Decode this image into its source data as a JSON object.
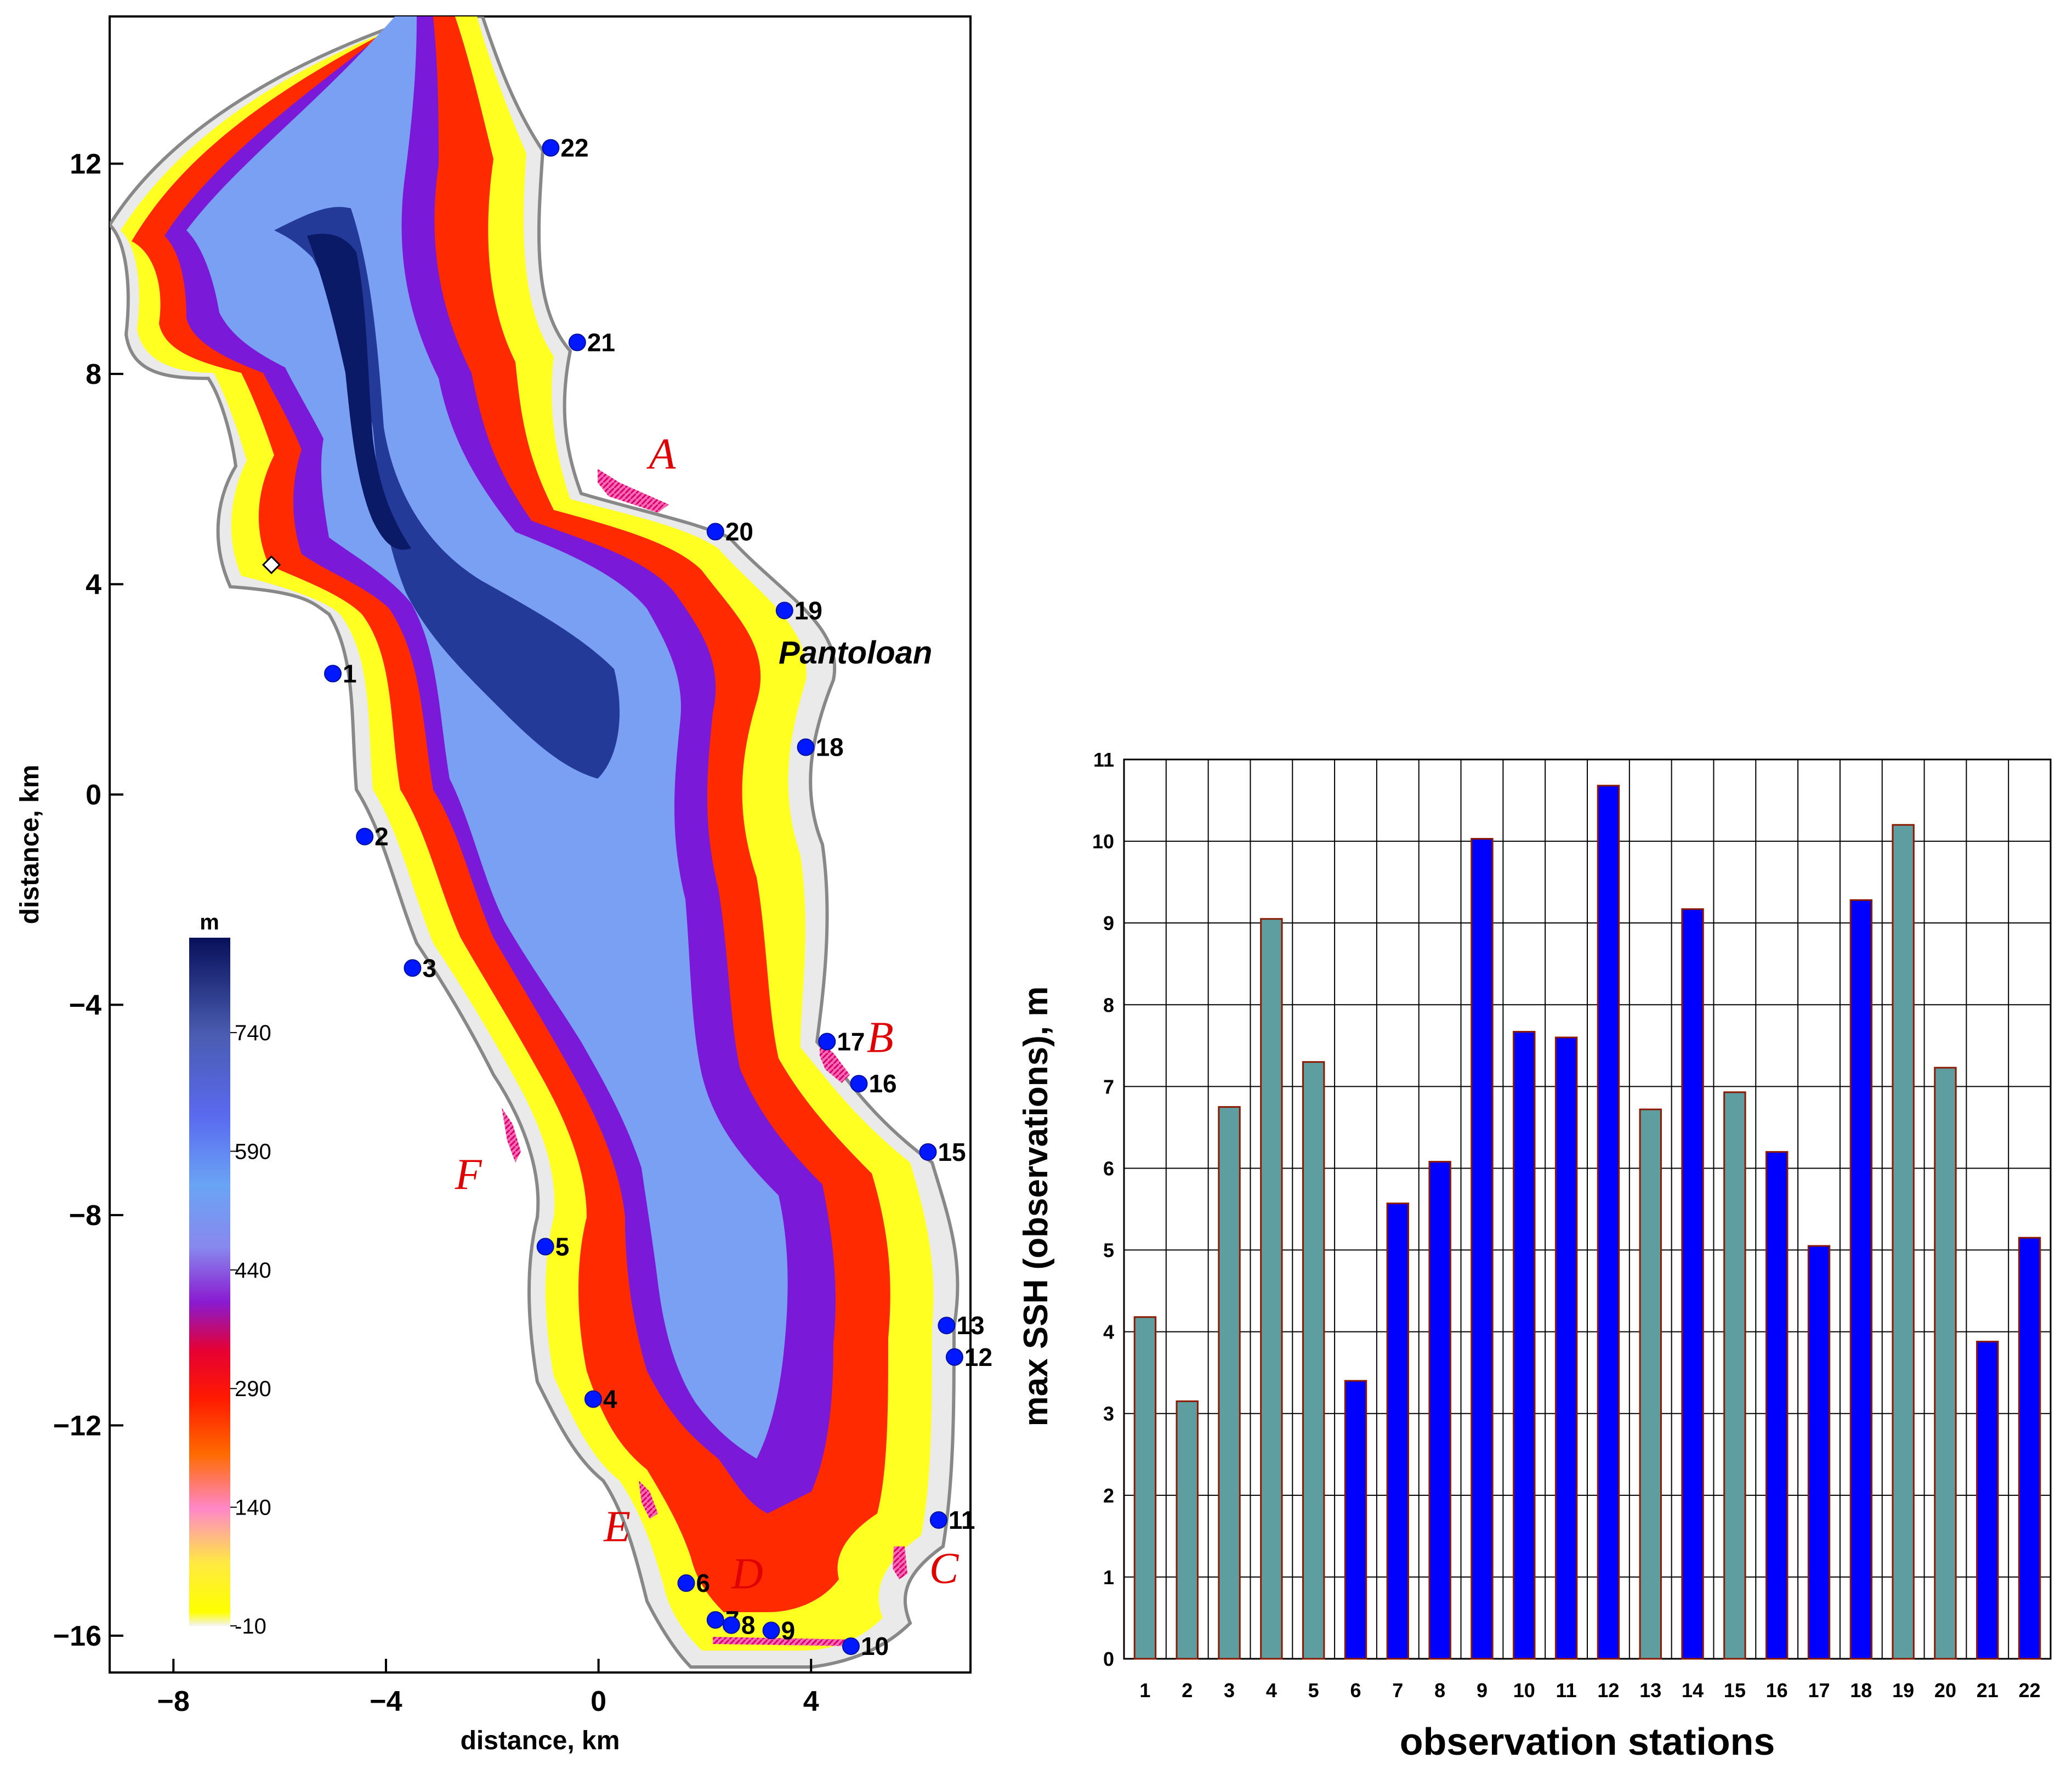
{
  "map": {
    "xlabel": "distance, km",
    "ylabel": "distance, km",
    "x_ticks": [
      -8,
      -4,
      0,
      4
    ],
    "y_ticks": [
      12,
      8,
      4,
      0,
      -4,
      -8,
      -12,
      -16
    ],
    "xlim": [
      -9.2,
      7.0
    ],
    "ylim": [
      -16.7,
      14.8
    ],
    "place_label": "Pantoloan",
    "colorbar": {
      "unit": "m",
      "ticks": [
        740,
        590,
        440,
        290,
        140,
        -10
      ],
      "range": [
        -10,
        860
      ]
    },
    "stations": [
      {
        "id": "1",
        "x": -5.0,
        "y": 2.3
      },
      {
        "id": "2",
        "x": -4.4,
        "y": -0.8
      },
      {
        "id": "3",
        "x": -3.5,
        "y": -3.3
      },
      {
        "id": "4",
        "x": -0.1,
        "y": -11.5
      },
      {
        "id": "5",
        "x": -1.0,
        "y": -8.6
      },
      {
        "id": "6",
        "x": 1.65,
        "y": -15.0
      },
      {
        "id": "7",
        "x": 2.2,
        "y": -15.7
      },
      {
        "id": "8",
        "x": 2.5,
        "y": -15.8
      },
      {
        "id": "9",
        "x": 3.25,
        "y": -15.9
      },
      {
        "id": "10",
        "x": 4.75,
        "y": -16.2
      },
      {
        "id": "11",
        "x": 6.4,
        "y": -13.8
      },
      {
        "id": "12",
        "x": 6.7,
        "y": -10.7
      },
      {
        "id": "13",
        "x": 6.55,
        "y": -10.1
      },
      {
        "id": "15",
        "x": 6.2,
        "y": -6.8
      },
      {
        "id": "16",
        "x": 4.9,
        "y": -5.5
      },
      {
        "id": "17",
        "x": 4.3,
        "y": -4.7
      },
      {
        "id": "18",
        "x": 3.9,
        "y": 0.9
      },
      {
        "id": "19",
        "x": 3.5,
        "y": 3.5
      },
      {
        "id": "20",
        "x": 2.2,
        "y": 5.0
      },
      {
        "id": "21",
        "x": -0.4,
        "y": 8.6
      },
      {
        "id": "22",
        "x": -0.9,
        "y": 12.3
      }
    ],
    "zones": [
      {
        "label": "A",
        "x": 1.2,
        "y": 6.2
      },
      {
        "label": "B",
        "x": 5.3,
        "y": -4.9
      },
      {
        "label": "C",
        "x": 6.5,
        "y": -15.0
      },
      {
        "label": "D",
        "x": 2.8,
        "y": -15.1
      },
      {
        "label": "E",
        "x": 0.35,
        "y": -14.2
      },
      {
        "label": "F",
        "x": -2.45,
        "y": -7.5
      }
    ]
  },
  "chart_data": {
    "type": "bar",
    "xlabel": "observation stations",
    "ylabel": "max SSH (observations), m",
    "ylim": [
      0,
      11
    ],
    "y_ticks": [
      0,
      1,
      2,
      3,
      4,
      5,
      6,
      7,
      8,
      9,
      10,
      11
    ],
    "categories": [
      "1",
      "2",
      "3",
      "4",
      "5",
      "6",
      "7",
      "8",
      "9",
      "10",
      "11",
      "12",
      "13",
      "14",
      "15",
      "16",
      "17",
      "18",
      "19",
      "20",
      "21",
      "22"
    ],
    "values": [
      4.18,
      3.15,
      6.75,
      9.05,
      7.3,
      3.4,
      5.57,
      6.08,
      10.03,
      7.67,
      7.6,
      10.68,
      6.72,
      9.17,
      6.93,
      6.2,
      5.05,
      9.28,
      10.2,
      7.23,
      3.88,
      5.15
    ],
    "bar_colors": [
      "gray",
      "gray",
      "gray",
      "gray",
      "gray",
      "blue",
      "blue",
      "blue",
      "blue",
      "blue",
      "blue",
      "blue",
      "gray",
      "blue",
      "gray",
      "blue",
      "blue",
      "blue",
      "gray",
      "gray",
      "blue",
      "blue"
    ],
    "colors": {
      "gray": "#5f9ea0",
      "blue": "#0000ff",
      "edge": "#8b1a00"
    }
  }
}
